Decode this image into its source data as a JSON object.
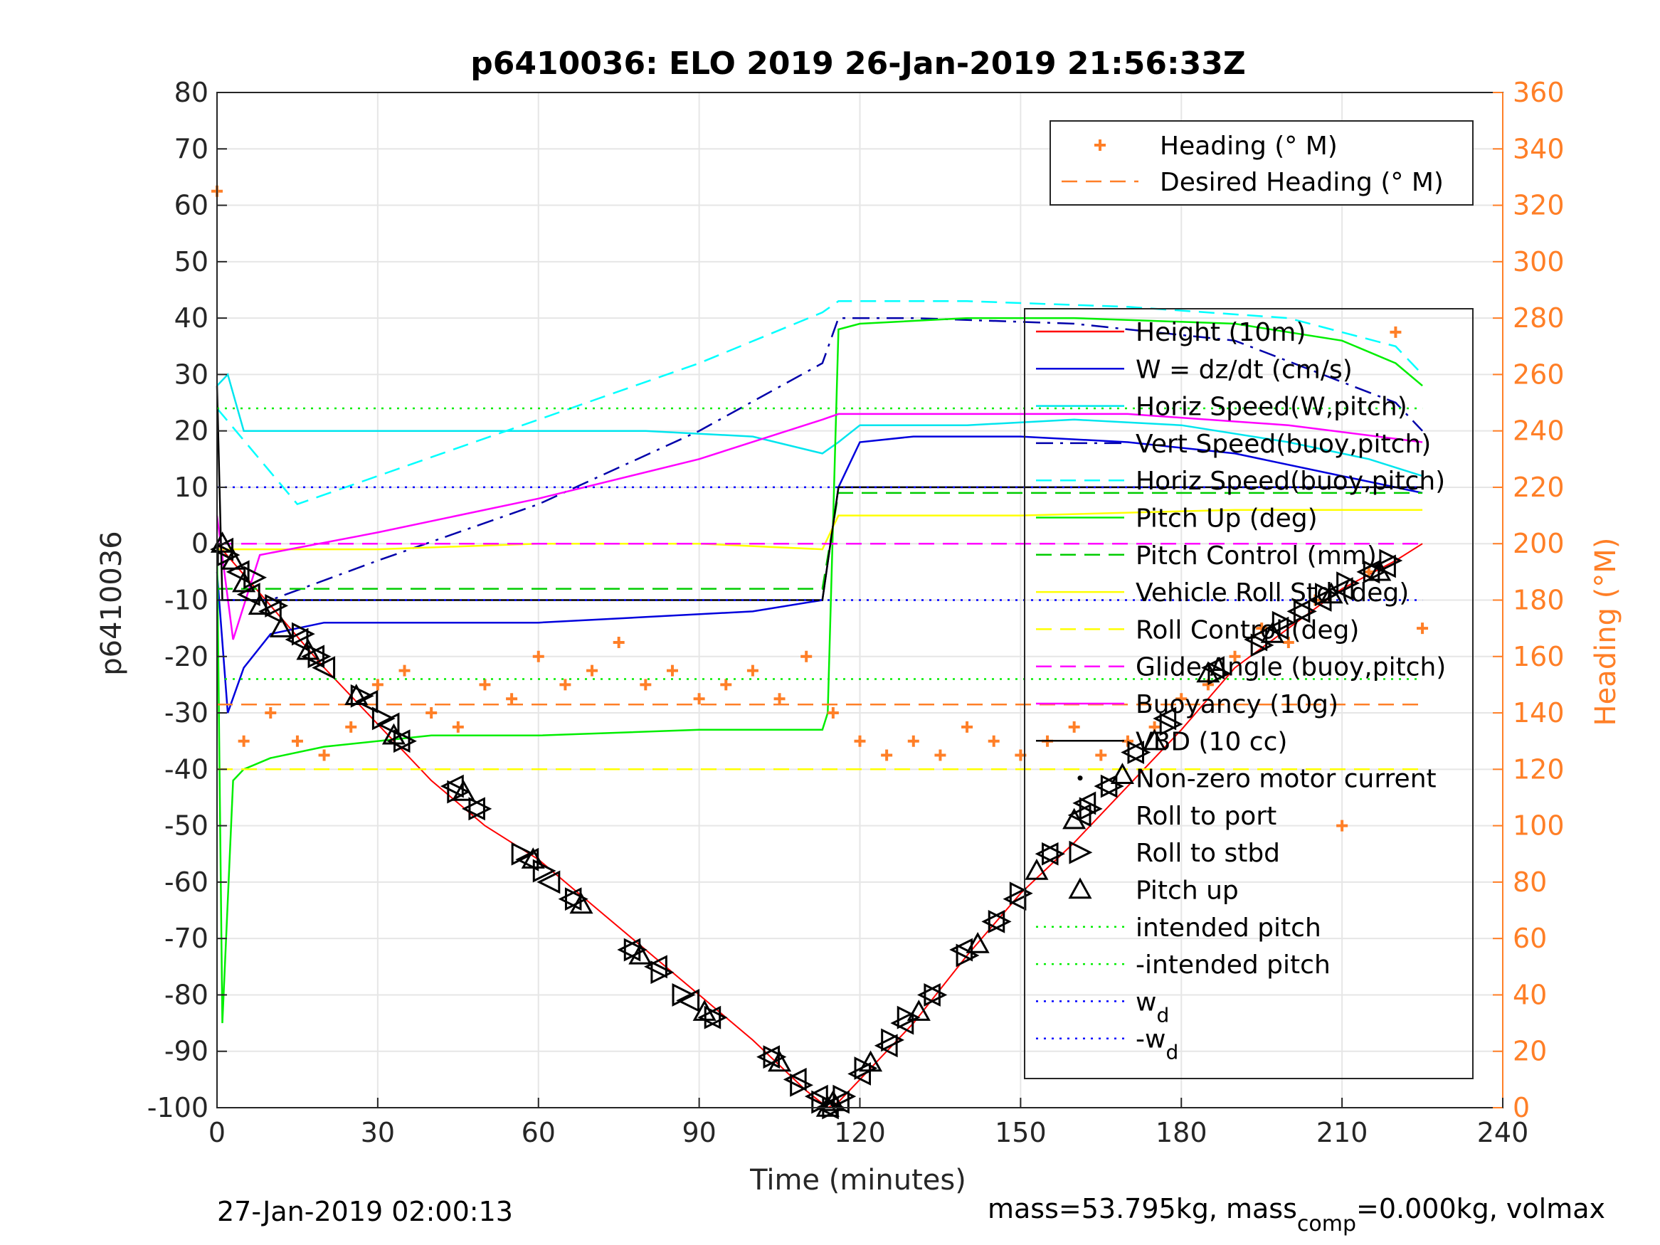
{
  "chart_data": {
    "type": "line",
    "title": "p6410036: ELO 2019 26-Jan-2019 21:56:33Z",
    "xlabel": "Time (minutes)",
    "ylabel_left": "p6410036",
    "ylabel_right": "Heading (°M)",
    "xlim": [
      0,
      240
    ],
    "ylim_left": [
      -100,
      80
    ],
    "ylim_right": [
      0,
      360
    ],
    "x_ticks": [
      "0",
      "30",
      "60",
      "90",
      "120",
      "150",
      "180",
      "210",
      "240"
    ],
    "y_ticks_left": [
      "80",
      "70",
      "60",
      "50",
      "40",
      "30",
      "20",
      "10",
      "0",
      "-10",
      "-20",
      "-30",
      "-40",
      "-50",
      "-60",
      "-70",
      "-80",
      "-90",
      "-100"
    ],
    "y_ticks_right": [
      "360",
      "340",
      "320",
      "300",
      "280",
      "260",
      "240",
      "220",
      "200",
      "180",
      "160",
      "140",
      "120",
      "100",
      "80",
      "60",
      "40",
      "20",
      "0"
    ],
    "grid": true,
    "colors": {
      "height": "#ff0000",
      "w": "#0000dd",
      "horiz_speed_w": "#00e5ee",
      "vert_speed_buoy": "#0000aa",
      "horiz_speed_buoy": "#00ffff",
      "pitch_up": "#00ee00",
      "pitch_control": "#00cc00",
      "roll": "#ffff00",
      "glide_angle": "#ff00ff",
      "buoyancy": "#ff00ff",
      "vbd": "#000000",
      "heading": "#ff7f27",
      "intended": "#00ee00",
      "wd": "#0000ff",
      "markers": "#000000",
      "right_axis": "#ff7f27"
    },
    "series": [
      {
        "name": "Height (10m)",
        "color": "#ff0000",
        "x": [
          0,
          10,
          20,
          30,
          40,
          50,
          60,
          70,
          80,
          90,
          100,
          110,
          114,
          116,
          120,
          130,
          140,
          150,
          160,
          170,
          180,
          190,
          200,
          210,
          220,
          225
        ],
        "y": [
          0,
          -11,
          -22,
          -32,
          -42,
          -50,
          -56,
          -64,
          -72,
          -80,
          -88,
          -97,
          -100,
          -99,
          -95,
          -85,
          -73,
          -62,
          -53,
          -43,
          -33,
          -22,
          -15,
          -8,
          -3,
          0
        ]
      },
      {
        "name": "W = dz/dt (cm/s)",
        "color": "#0000dd",
        "x": [
          0,
          2,
          5,
          10,
          20,
          40,
          60,
          80,
          100,
          113,
          116,
          120,
          130,
          150,
          170,
          190,
          210,
          225
        ],
        "y": [
          -5,
          -30,
          -22,
          -16,
          -14,
          -14,
          -14,
          -13,
          -12,
          -10,
          10,
          18,
          19,
          19,
          18,
          16,
          12,
          9
        ]
      },
      {
        "name": "Horiz Speed(W,pitch)",
        "color": "#00e5ee",
        "x": [
          0,
          2,
          5,
          10,
          20,
          40,
          60,
          80,
          100,
          113,
          116,
          120,
          140,
          160,
          180,
          200,
          215,
          225
        ],
        "y": [
          28,
          30,
          20,
          20,
          20,
          20,
          20,
          20,
          19,
          16,
          18,
          21,
          21,
          22,
          21,
          18,
          15,
          12
        ]
      },
      {
        "name": "Vert Speed(buoy,pitch)",
        "color": "#0000aa",
        "x": [
          0,
          10,
          30,
          60,
          90,
          113,
          116,
          130,
          160,
          190,
          220,
          225
        ],
        "y": [
          -10,
          -10,
          -3,
          7,
          20,
          32,
          40,
          40,
          39,
          36,
          25,
          20
        ]
      },
      {
        "name": "Horiz Speed(buoy,pitch)",
        "color": "#00ffff",
        "x": [
          0,
          15,
          30,
          60,
          90,
          113,
          116,
          140,
          170,
          200,
          220,
          225
        ],
        "y": [
          24,
          7,
          12,
          22,
          32,
          41,
          43,
          43,
          42,
          40,
          35,
          30
        ]
      },
      {
        "name": "Pitch Up (deg)",
        "color": "#00ee00",
        "x": [
          0,
          1,
          3,
          5,
          10,
          20,
          40,
          60,
          90,
          113,
          114,
          116,
          120,
          140,
          160,
          190,
          210,
          220,
          225
        ],
        "y": [
          0,
          -85,
          -42,
          -40,
          -38,
          -36,
          -34,
          -34,
          -33,
          -33,
          -30,
          38,
          39,
          40,
          40,
          39,
          36,
          32,
          28
        ]
      },
      {
        "name": "Pitch Control (mm)",
        "color": "#00cc00",
        "x": [
          0,
          10,
          60,
          113,
          116,
          225
        ],
        "y": [
          -8,
          -8,
          -8,
          -8,
          9,
          9
        ]
      },
      {
        "name": "Vehicle Roll Std (deg)",
        "color": "#ffff00",
        "x": [
          0,
          10,
          30,
          60,
          90,
          113,
          116,
          150,
          190,
          225
        ],
        "y": [
          -1,
          -1,
          -1,
          0,
          0,
          -1,
          5,
          5,
          6,
          6
        ]
      },
      {
        "name": "Roll Control (deg)",
        "color": "#ffff00",
        "x": [
          0,
          225
        ],
        "y": [
          -40,
          -40
        ]
      },
      {
        "name": "Glide Angle (buoy,pitch)",
        "color": "#ff00ff",
        "x": [
          0,
          225
        ],
        "y": [
          0,
          0
        ]
      },
      {
        "name": "Buoyancy (10g)",
        "color": "#ff00ff",
        "x": [
          0,
          3,
          8,
          30,
          60,
          90,
          113,
          116,
          140,
          170,
          200,
          225
        ],
        "y": [
          5,
          -17,
          -2,
          2,
          8,
          15,
          22,
          23,
          23,
          23,
          21,
          18
        ]
      },
      {
        "name": "VBD (10 cc)",
        "color": "#000000",
        "x": [
          0,
          1,
          2,
          113,
          116,
          225
        ],
        "y": [
          28,
          -10,
          -10,
          -10,
          10,
          10
        ]
      },
      {
        "name": "Heading (° M)",
        "color": "#ff7f27",
        "axis": "right",
        "x": [
          0,
          5,
          10,
          15,
          20,
          25,
          30,
          35,
          40,
          45,
          50,
          55,
          60,
          65,
          70,
          75,
          80,
          85,
          90,
          95,
          100,
          105,
          110,
          115,
          120,
          125,
          130,
          135,
          140,
          145,
          150,
          155,
          160,
          165,
          170,
          175,
          180,
          185,
          190,
          195,
          200,
          205,
          210,
          215,
          220,
          225
        ],
        "y": [
          325,
          130,
          140,
          130,
          125,
          135,
          150,
          155,
          140,
          135,
          150,
          145,
          160,
          150,
          155,
          165,
          150,
          155,
          145,
          150,
          155,
          145,
          160,
          140,
          130,
          125,
          130,
          125,
          135,
          130,
          125,
          130,
          135,
          125,
          130,
          135,
          145,
          150,
          160,
          170,
          165,
          180,
          100,
          190,
          275,
          170
        ]
      },
      {
        "name": "Desired Heading (° M)",
        "color": "#ff7f27",
        "axis": "right",
        "x": [
          0,
          225
        ],
        "y": [
          143,
          143
        ]
      },
      {
        "name": "intended pitch",
        "color": "#00ee00",
        "x": [
          0,
          225
        ],
        "y": [
          24,
          24
        ]
      },
      {
        "name": "-intended pitch",
        "color": "#00ee00",
        "x": [
          0,
          225
        ],
        "y": [
          -24,
          -24
        ]
      },
      {
        "name": "w_d",
        "color": "#0000ff",
        "x": [
          0,
          225
        ],
        "y": [
          10,
          10
        ]
      },
      {
        "name": "-w_d",
        "color": "#0000ff",
        "x": [
          0,
          225
        ],
        "y": [
          -10,
          -10
        ]
      }
    ],
    "markers": [
      {
        "name": "Roll to port",
        "symbol": "triangle-left",
        "x": [
          1,
          4,
          6,
          10,
          15,
          18,
          20,
          28,
          32,
          34,
          44,
          48,
          58,
          62,
          66,
          77,
          82,
          88,
          92,
          103,
          108,
          112,
          114,
          116,
          120,
          125,
          128,
          133,
          139,
          145,
          149,
          155,
          162,
          166,
          171,
          177,
          186,
          194,
          198,
          202,
          206,
          210,
          215,
          218
        ],
        "y": [
          -1,
          -5,
          -9,
          -12,
          -17,
          -20,
          -22,
          -28,
          -32,
          -35,
          -43,
          -47,
          -56,
          -60,
          -63,
          -72,
          -75,
          -81,
          -84,
          -91,
          -95,
          -98,
          -100,
          -99,
          -94,
          -89,
          -85,
          -80,
          -72,
          -67,
          -63,
          -55,
          -46,
          -43,
          -37,
          -31,
          -22,
          -17,
          -15,
          -12,
          -10,
          -8,
          -5,
          -4
        ]
      },
      {
        "name": "Roll to stbd",
        "symbol": "triangle-right",
        "x": [
          2,
          7,
          11,
          16,
          19,
          27,
          31,
          35,
          45,
          49,
          57,
          61,
          67,
          78,
          83,
          87,
          93,
          104,
          109,
          113,
          115,
          117,
          121,
          126,
          129,
          134,
          140,
          146,
          150,
          156,
          163,
          167,
          172,
          178,
          187,
          195,
          199,
          203,
          207,
          211,
          216,
          219
        ],
        "y": [
          -2,
          -6,
          -11,
          -16,
          -20,
          -27,
          -31,
          -35,
          -44,
          -47,
          -55,
          -58,
          -63,
          -72,
          -76,
          -80,
          -84,
          -91,
          -96,
          -99,
          -100,
          -98,
          -93,
          -88,
          -84,
          -80,
          -73,
          -67,
          -62,
          -55,
          -47,
          -43,
          -37,
          -32,
          -23,
          -18,
          -14,
          -12,
          -9,
          -7,
          -5,
          -3
        ]
      },
      {
        "name": "Pitch up",
        "symbol": "triangle-up",
        "x": [
          1,
          3,
          5,
          8,
          12,
          17,
          26,
          33,
          46,
          59,
          68,
          79,
          91,
          105,
          114,
          115,
          122,
          131,
          142,
          153,
          160,
          169,
          175,
          185,
          197,
          208,
          217
        ],
        "y": [
          0,
          -3,
          -7,
          -11,
          -15,
          -19,
          -27,
          -34,
          -44,
          -56,
          -64,
          -73,
          -83,
          -92,
          -100,
          -99,
          -92,
          -83,
          -71,
          -58,
          -49,
          -41,
          -35,
          -23,
          -16,
          -9,
          -5
        ]
      },
      {
        "name": "Non-zero motor current",
        "symbol": "dot",
        "x": [],
        "y": []
      }
    ],
    "legend_top": {
      "placement": "top-right",
      "entries": [
        {
          "label": "Heading (° M)",
          "style": "plus",
          "color": "#ff7f27"
        },
        {
          "label": "Desired Heading (° M)",
          "style": "dash",
          "color": "#ff7f27"
        }
      ]
    },
    "legend_main": {
      "placement": "right",
      "entries": [
        {
          "label": "Height (10m)",
          "style": "solid",
          "color": "#ff0000"
        },
        {
          "label": "W = dz/dt (cm/s)",
          "style": "solid",
          "color": "#0000dd"
        },
        {
          "label": "Horiz Speed(W,pitch)",
          "style": "solid",
          "color": "#00e5ee"
        },
        {
          "label": "Vert Speed(buoy,pitch)",
          "style": "dashdot",
          "color": "#0000aa"
        },
        {
          "label": "Horiz Speed(buoy,pitch)",
          "style": "dash",
          "color": "#00ffff"
        },
        {
          "label": "Pitch Up (deg)",
          "style": "solid",
          "color": "#00ee00"
        },
        {
          "label": "Pitch Control (mm)",
          "style": "dash",
          "color": "#00cc00"
        },
        {
          "label": "Vehicle Roll Std (deg)",
          "style": "solid",
          "color": "#ffff00"
        },
        {
          "label": "Roll Control (deg)",
          "style": "dash",
          "color": "#ffff00"
        },
        {
          "label": "Glide Angle (buoy,pitch)",
          "style": "dash",
          "color": "#ff00ff"
        },
        {
          "label": "Buoyancy (10g)",
          "style": "solid",
          "color": "#ff00ff"
        },
        {
          "label": "VBD (10 cc)",
          "style": "solid",
          "color": "#000000"
        },
        {
          "label": "Non-zero motor current",
          "style": "dot",
          "color": "#000000"
        },
        {
          "label": "Roll to port",
          "style": "triangle-left",
          "color": "#000000"
        },
        {
          "label": "Roll to stbd",
          "style": "triangle-right",
          "color": "#000000"
        },
        {
          "label": "Pitch up",
          "style": "triangle-up",
          "color": "#000000"
        },
        {
          "label": "intended pitch",
          "style": "dotted",
          "color": "#00ee00"
        },
        {
          "label": "-intended pitch",
          "style": "dotted",
          "color": "#00ee00"
        },
        {
          "label": "w",
          "sub": "d",
          "style": "dotted",
          "color": "#0000ff"
        },
        {
          "label": "-w",
          "sub": "d",
          "style": "dotted",
          "color": "#0000ff"
        }
      ]
    }
  },
  "footer": {
    "left_timestamp": "27-Jan-2019 02:00:13",
    "mass_text": "mass=53.795kg, mass",
    "mass_sub": "comp",
    "mass_rest": "=0.000kg, volmax"
  }
}
